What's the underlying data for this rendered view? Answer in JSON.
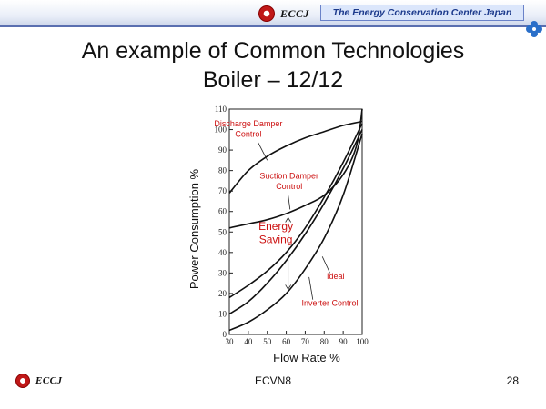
{
  "header": {
    "logo_text": "ECCJ",
    "org_name": "The Energy Conservation Center Japan"
  },
  "slide": {
    "title_line1": "An example of Common Technologies",
    "title_line2": "Boiler – 12/12"
  },
  "footer": {
    "logo_text": "ECCJ",
    "center_text": "ECVN8",
    "page_number": "28"
  },
  "colors": {
    "title": "#111111",
    "annotation_red": "#cc1111",
    "header_box_bg": "#dbe6fb",
    "header_text": "#1c3a8c",
    "logo_red": "#c01818",
    "clover": "#2a6fc9"
  },
  "icons": {
    "header_logo": "eccj-logo-icon",
    "clover": "clover-icon"
  },
  "chart_data": {
    "type": "line",
    "xlabel": "Flow Rate %",
    "ylabel": "Power Consumption %",
    "xlim": [
      30,
      100
    ],
    "ylim": [
      0,
      110
    ],
    "xticks": [
      "30",
      "40",
      "50",
      "60",
      "70",
      "80",
      "90",
      "100"
    ],
    "yticks": [
      "0",
      "10",
      "20",
      "30",
      "40",
      "50",
      "60",
      "70",
      "80",
      "90",
      "100",
      "110"
    ],
    "grid": false,
    "series": [
      {
        "name": "Discharge Damper Control",
        "x": [
          30,
          40,
          50,
          60,
          70,
          80,
          90,
          100
        ],
        "y": [
          69,
          80,
          87,
          92,
          96,
          99,
          102,
          104
        ]
      },
      {
        "name": "Suction Damper Control",
        "x": [
          30,
          40,
          50,
          60,
          70,
          80,
          90,
          97,
          100
        ],
        "y": [
          52,
          54,
          56,
          59,
          63,
          68,
          78,
          92,
          110
        ]
      },
      {
        "name": "Ideal",
        "x": [
          30,
          40,
          50,
          60,
          70,
          80,
          90,
          100
        ],
        "y": [
          10,
          16,
          25,
          36,
          49,
          64,
          81,
          100
        ]
      },
      {
        "name": "Inverter Control",
        "x": [
          30,
          40,
          50,
          60,
          70,
          80,
          90,
          100
        ],
        "y": [
          2,
          6,
          12,
          20,
          32,
          47,
          68,
          98
        ]
      },
      {
        "name": "",
        "x": [
          30,
          40,
          50,
          60,
          70,
          80,
          90,
          100
        ],
        "y": [
          18,
          24,
          31,
          40,
          52,
          67,
          84,
          103
        ]
      }
    ],
    "annotations": [
      {
        "text": "Discharge Damper",
        "x": 40,
        "y": 101.5,
        "color": "#cc1111",
        "size": 9
      },
      {
        "text": "Control",
        "x": 40,
        "y": 96.5,
        "color": "#cc1111",
        "size": 9
      },
      {
        "text": "Suction Damper",
        "x": 61.5,
        "y": 76,
        "color": "#cc1111",
        "size": 9
      },
      {
        "text": "Control",
        "x": 61.5,
        "y": 71,
        "color": "#cc1111",
        "size": 9
      },
      {
        "text": "Energy",
        "x": 54.5,
        "y": 51,
        "color": "#cc1111",
        "size": 12
      },
      {
        "text": "Saving",
        "x": 54.5,
        "y": 44.5,
        "color": "#cc1111",
        "size": 12
      },
      {
        "text": "Ideal",
        "x": 86,
        "y": 27,
        "color": "#cc1111",
        "size": 9
      },
      {
        "text": "Inverter Control",
        "x": 83,
        "y": 14,
        "color": "#cc1111",
        "size": 9
      }
    ],
    "leaders": [
      {
        "from": [
          45,
          94
        ],
        "to": [
          50,
          85
        ]
      },
      {
        "from": [
          61,
          68
        ],
        "to": [
          62,
          61
        ]
      },
      {
        "from": [
          83,
          30
        ],
        "to": [
          79,
          38
        ]
      },
      {
        "from": [
          74,
          17
        ],
        "to": [
          72,
          28
        ]
      }
    ],
    "energy_saving_arrow": {
      "x": 61,
      "y_top": 57,
      "y_bottom": 22
    }
  }
}
